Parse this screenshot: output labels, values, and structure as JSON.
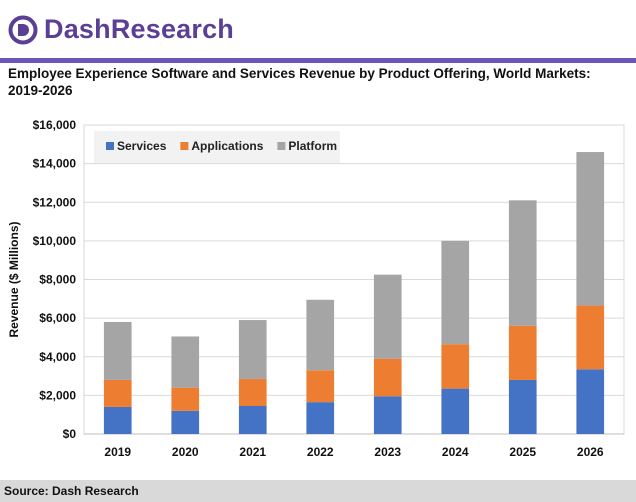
{
  "brand": {
    "name": "DashResearch",
    "accent": "#6a55b8",
    "text_color": "#5b3f95"
  },
  "title": "Employee Experience Software and Services Revenue by Product Offering, World Markets: 2019-2026",
  "source": "Source: Dash Research",
  "chart_data": {
    "type": "bar",
    "stacked": true,
    "categories": [
      "2019",
      "2020",
      "2021",
      "2022",
      "2023",
      "2024",
      "2025",
      "2026"
    ],
    "series": [
      {
        "name": "Services",
        "color": "#4472c4",
        "values": [
          1400,
          1200,
          1450,
          1650,
          1950,
          2350,
          2800,
          3350
        ]
      },
      {
        "name": "Applications",
        "color": "#ed7d31",
        "values": [
          1400,
          1200,
          1400,
          1650,
          1950,
          2300,
          2800,
          3300
        ]
      },
      {
        "name": "Platform",
        "color": "#a5a5a5",
        "values": [
          3000,
          2650,
          3050,
          3650,
          4350,
          5350,
          6500,
          7950
        ]
      }
    ],
    "ylabel": "Revenue ($ Millions)",
    "xlabel": "",
    "ylim": [
      0,
      16000
    ],
    "yticks": [
      "$0",
      "$2,000",
      "$4,000",
      "$6,000",
      "$8,000",
      "$10,000",
      "$12,000",
      "$14,000",
      "$16,000"
    ],
    "ytick_values": [
      0,
      2000,
      4000,
      6000,
      8000,
      10000,
      12000,
      14000,
      16000
    ],
    "grid": true,
    "legend_position": "top-left"
  }
}
